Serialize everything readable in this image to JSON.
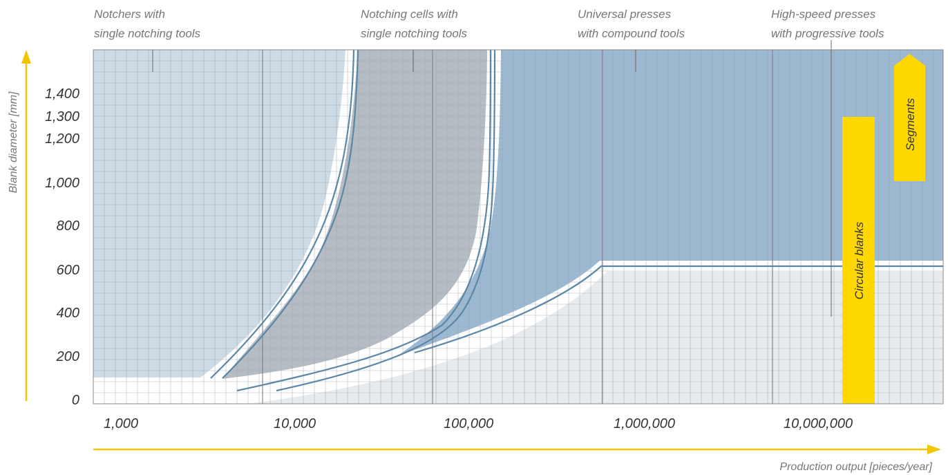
{
  "chart_data": {
    "type": "area",
    "title": "",
    "xlabel": "Production output [pieces/year]",
    "ylabel": "Blank diameter [mm]",
    "x_scale": "log",
    "xlim": [
      1000,
      60000000
    ],
    "x_ticks": [
      {
        "value": 1000,
        "label": "1,000"
      },
      {
        "value": 10000,
        "label": "10,000"
      },
      {
        "value": 100000,
        "label": "100,000"
      },
      {
        "value": 1000000,
        "label": "1,000,000"
      },
      {
        "value": 10000000,
        "label": "10,000,000"
      }
    ],
    "y_ticks": [
      {
        "value": 0,
        "label": "0"
      },
      {
        "value": 200,
        "label": "200"
      },
      {
        "value": 400,
        "label": "400"
      },
      {
        "value": 600,
        "label": "600"
      },
      {
        "value": 800,
        "label": "800"
      },
      {
        "value": 1000,
        "label": "1,000"
      },
      {
        "value": 1200,
        "label": "1,200"
      },
      {
        "value": 1300,
        "label": "1,300"
      },
      {
        "value": 1400,
        "label": "1,400"
      }
    ],
    "grid": true,
    "regions": [
      {
        "name": "Notchers with single notching tools",
        "line1": "Notchers with",
        "line2": "single notching tools",
        "color": "#cddbe7"
      },
      {
        "name": "Notching cells with single notching tools",
        "line1": "Notching cells with",
        "line2": "single notching tools",
        "color": "#b5bcc4"
      },
      {
        "name": "Universal presses with compound tools",
        "line1": "Universal presses",
        "line2": "with compound tools",
        "color": "#9db9d2"
      },
      {
        "name": "High-speed presses with progressive tools",
        "line1": "High-speed presses",
        "line2": "with progressive tools",
        "color": "#e8ebee"
      }
    ],
    "annotations": [
      {
        "label": "Circular blanks",
        "x_from": 14000000,
        "x_to": 22000000,
        "y_from": 0,
        "y_to": 1300,
        "color": "#ffd800"
      },
      {
        "label": "Segments",
        "x_from": 30000000,
        "x_to": 48000000,
        "y_from": 1000,
        "y_to": 1550,
        "color": "#ffd800"
      }
    ],
    "accent_colors": {
      "axis_arrow": "#f5c400",
      "boundary_line": "#5b87a6",
      "grid": "#9aa0a6"
    }
  }
}
